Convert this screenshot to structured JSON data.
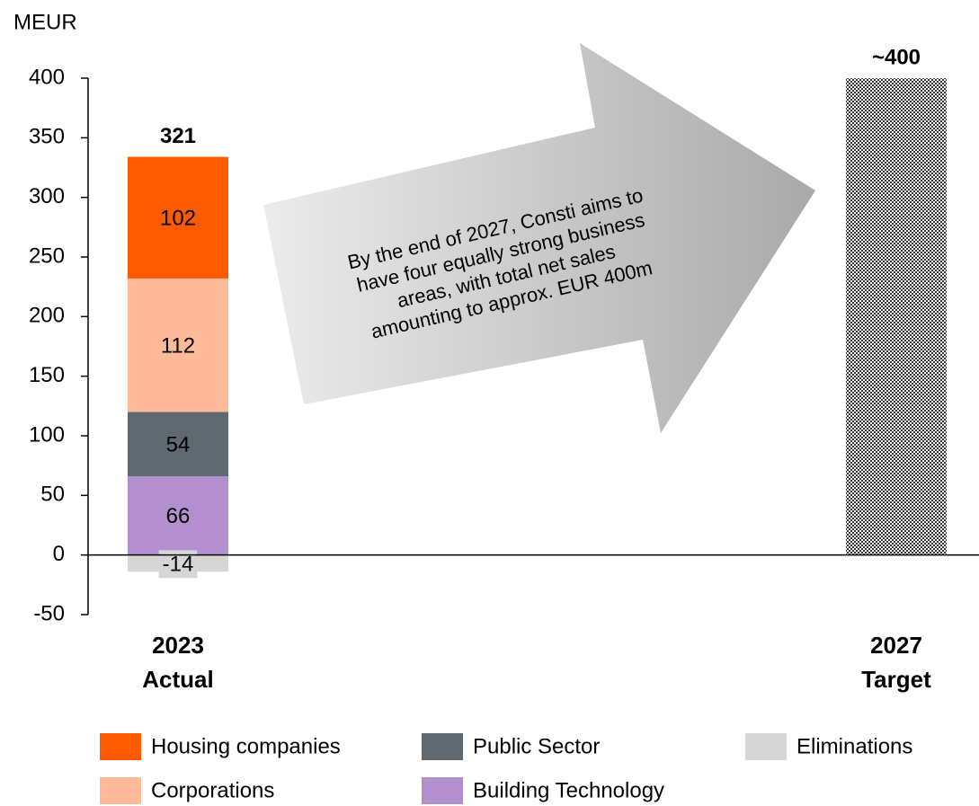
{
  "chart_data": {
    "type": "bar",
    "stacked": true,
    "ylabel": "MEUR",
    "categories": [
      "2023\nActual",
      "2027\nTarget"
    ],
    "series": [
      {
        "name": "Building Technology",
        "color": "#b38fcf",
        "values": [
          66,
          null
        ]
      },
      {
        "name": "Public Sector",
        "color": "#5f6a70",
        "values": [
          54,
          null
        ]
      },
      {
        "name": "Corporations",
        "color": "#ffbb99",
        "values": [
          112,
          null
        ]
      },
      {
        "name": "Housing companies",
        "color": "#ff5a00",
        "values": [
          102,
          null
        ]
      },
      {
        "name": "Eliminations",
        "color": "#d6d6d6",
        "values": [
          -14,
          null
        ]
      }
    ],
    "totals": {
      "values": [
        321,
        400
      ],
      "value_labels": [
        null,
        "~400"
      ]
    },
    "annotation": "By the end of 2027, Consti aims to\nhave four equally strong business\nareas, with total net sales\namounting to approx. EUR 400m",
    "ylim": [
      -50,
      400
    ],
    "yticks": [
      -50,
      0,
      50,
      100,
      150,
      200,
      250,
      300,
      350,
      400
    ]
  }
}
